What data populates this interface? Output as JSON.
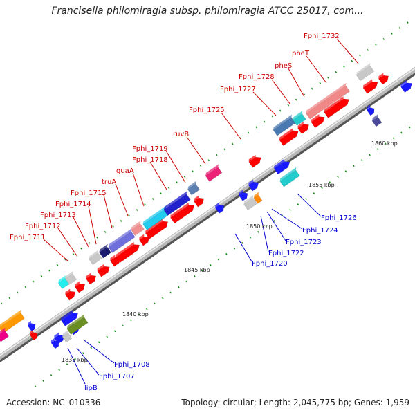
{
  "title": "Francisella philomiragia subsp. philomiragia ATCC 25017, com...",
  "footer": {
    "accession": "Accession: NC_010336",
    "summary": "Topology: circular; Length: 2,045,775 bp; Genes: 1,959"
  },
  "kbp_ticks": [
    "1835 kbp",
    "1840 kbp",
    "1845 kbp",
    "1850 kbp",
    "1855 kbp",
    "1860 kbp"
  ],
  "gene_labels_top": [
    "Fphi_1711",
    "Fphi_1712",
    "Fphi_1713",
    "Fphi_1714",
    "Fphi_1715",
    "truA",
    "guaA",
    "Fphi_1718",
    "Fphi_1719",
    "ruvB",
    "Fphi_1725",
    "Fphi_1727",
    "Fphi_1728",
    "pheS",
    "pheT",
    "Fphi_1732"
  ],
  "gene_labels_bottom": [
    "lipB",
    "Fphi_1707",
    "Fphi_1708",
    "Fphi_1720",
    "Fphi_1722",
    "Fphi_1723",
    "Fphi_1724",
    "Fphi_1726"
  ],
  "colors": {
    "forward_gene": "#ff0000",
    "reverse_gene": "#1a1aff",
    "top_label": "#cc0000",
    "bottom_label": "#0000cc",
    "backbone": "#9a9a9a",
    "tick": "#118811"
  }
}
